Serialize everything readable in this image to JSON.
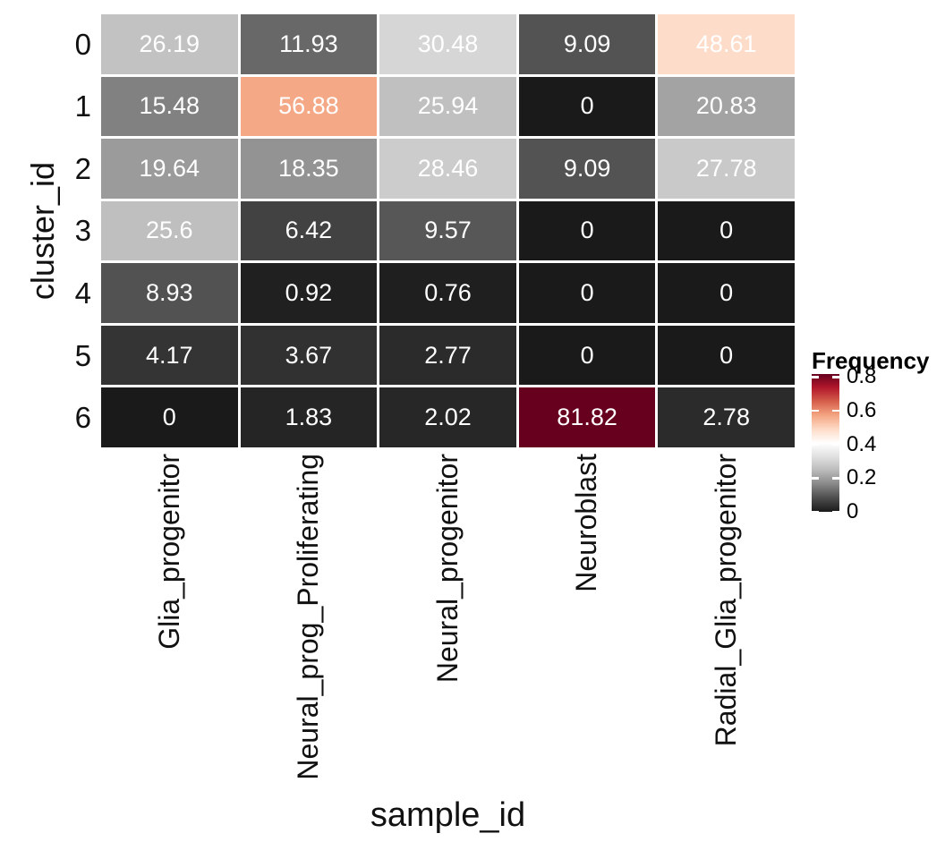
{
  "figure": {
    "background": "#ffffff"
  },
  "chart_data": {
    "type": "heatmap",
    "title": "",
    "xlabel": "sample_id",
    "ylabel": "cluster_id",
    "x_categories": [
      "Glia_progenitor",
      "Neural_prog_Proliferating",
      "Neural_progenitor",
      "Neuroblast",
      "Radial_Glia_progenitor"
    ],
    "y_categories": [
      "0",
      "1",
      "2",
      "3",
      "4",
      "5",
      "6"
    ],
    "cell_unit": "percent",
    "values": [
      [
        26.19,
        11.93,
        30.48,
        9.09,
        48.61
      ],
      [
        15.48,
        56.88,
        25.94,
        0,
        20.83
      ],
      [
        19.64,
        18.35,
        28.46,
        9.09,
        27.78
      ],
      [
        25.6,
        6.42,
        9.57,
        0,
        0
      ],
      [
        8.93,
        0.92,
        0.76,
        0,
        0
      ],
      [
        4.17,
        3.67,
        2.77,
        0,
        0
      ],
      [
        0,
        1.83,
        2.02,
        81.82,
        2.78
      ]
    ],
    "cell_labels": [
      [
        "26.19",
        "11.93",
        "30.48",
        "9.09",
        "48.61"
      ],
      [
        "15.48",
        "56.88",
        "25.94",
        "0",
        "20.83"
      ],
      [
        "19.64",
        "18.35",
        "28.46",
        "9.09",
        "27.78"
      ],
      [
        "25.6",
        "6.42",
        "9.57",
        "0",
        "0"
      ],
      [
        "8.93",
        "0.92",
        "0.76",
        "0",
        "0"
      ],
      [
        "4.17",
        "3.67",
        "2.77",
        "0",
        "0"
      ],
      [
        "0",
        "1.83",
        "2.02",
        "81.82",
        "2.78"
      ]
    ],
    "fill_domain": [
      0,
      0.8182
    ],
    "palette": {
      "name": "RdGy-reversed",
      "stops": [
        "#1a1a1a",
        "#4d4d4d",
        "#878787",
        "#bababa",
        "#e0e0e0",
        "#ffffff",
        "#fddbc7",
        "#f4a582",
        "#d6604d",
        "#b2182b",
        "#67001f"
      ]
    },
    "legend": {
      "title": "Frequency",
      "ticks": [
        {
          "value": 0.8,
          "label": "0.8"
        },
        {
          "value": 0.6,
          "label": "0.6"
        },
        {
          "value": 0.4,
          "label": "0.4"
        },
        {
          "value": 0.2,
          "label": "0.2"
        },
        {
          "value": 0,
          "label": "0"
        }
      ],
      "position": "right"
    },
    "grid": false,
    "colors": {
      "cell_text": "#ffffff",
      "axis_text": "#111111",
      "tile_border": "#ffffff",
      "legend_tick": "#ffffff"
    }
  }
}
